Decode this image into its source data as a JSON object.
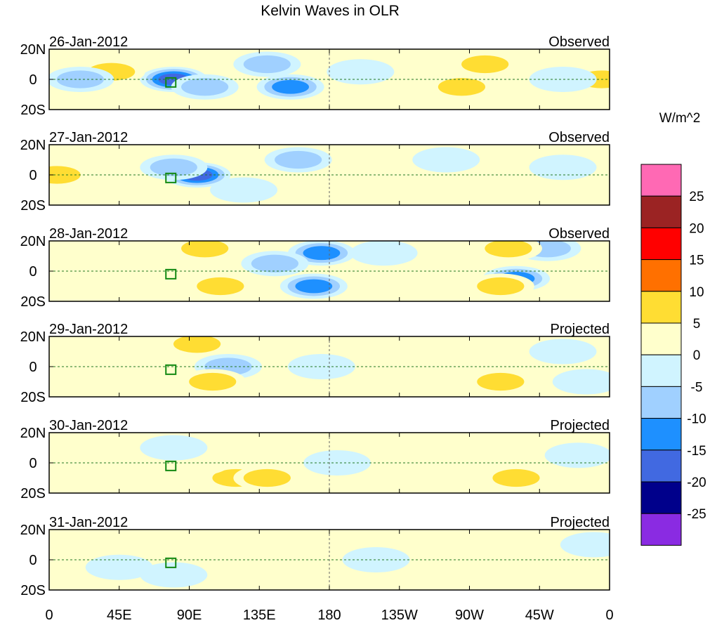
{
  "chart_data": {
    "type": "heatmap",
    "title": "Kelvin Waves in OLR",
    "units_label": "W/m^2",
    "x_ticks": [
      "0",
      "45E",
      "90E",
      "135E",
      "180",
      "135W",
      "90W",
      "45W",
      "0"
    ],
    "x_tick_lons": [
      0,
      45,
      90,
      135,
      180,
      225,
      270,
      315,
      360
    ],
    "y_ticks": [
      "20N",
      "0",
      "20S"
    ],
    "y_tick_lats": [
      20,
      0,
      -20
    ],
    "xlim": [
      0,
      360
    ],
    "ylim": [
      -20,
      20
    ],
    "colorbar": {
      "levels": [
        "25",
        "20",
        "15",
        "10",
        "5",
        "0",
        "-5",
        "-10",
        "-15",
        "-20",
        "-25"
      ],
      "colors": [
        "#ff69b4",
        "#9b2323",
        "#ff0000",
        "#ff7000",
        "#ffdd33",
        "#ffffcc",
        "#d0f4ff",
        "#a0d0ff",
        "#1e90ff",
        "#4169e1",
        "#00008b",
        "#8a2be2"
      ]
    },
    "panels": [
      {
        "date": "26-Jan-2012",
        "kind": "Observed",
        "anomalies": [
          [
            80,
            0,
            -20
          ],
          [
            100,
            -5,
            -10
          ],
          [
            155,
            -5,
            -15
          ],
          [
            140,
            10,
            -10
          ],
          [
            40,
            5,
            10
          ],
          [
            280,
            10,
            10
          ],
          [
            265,
            -5,
            10
          ],
          [
            355,
            0,
            10
          ],
          [
            20,
            0,
            -10
          ],
          [
            200,
            5,
            -5
          ],
          [
            330,
            0,
            -5
          ]
        ]
      },
      {
        "date": "27-Jan-2012",
        "kind": "Observed",
        "anomalies": [
          [
            95,
            0,
            -20
          ],
          [
            80,
            5,
            -10
          ],
          [
            125,
            -10,
            -5
          ],
          [
            160,
            10,
            -10
          ],
          [
            5,
            0,
            10
          ],
          [
            40,
            15,
            5
          ],
          [
            290,
            -10,
            5
          ],
          [
            210,
            -5,
            5
          ],
          [
            330,
            5,
            -5
          ],
          [
            255,
            10,
            -5
          ]
        ]
      },
      {
        "date": "28-Jan-2012",
        "kind": "Observed",
        "anomalies": [
          [
            175,
            12,
            -15
          ],
          [
            145,
            5,
            -10
          ],
          [
            170,
            -10,
            -15
          ],
          [
            300,
            -5,
            -15
          ],
          [
            320,
            15,
            -10
          ],
          [
            110,
            -10,
            10
          ],
          [
            100,
            15,
            10
          ],
          [
            295,
            15,
            10
          ],
          [
            290,
            -10,
            10
          ],
          [
            30,
            0,
            5
          ],
          [
            215,
            12,
            -5
          ]
        ]
      },
      {
        "date": "29-Jan-2012",
        "kind": "Projected",
        "anomalies": [
          [
            175,
            0,
            -5
          ],
          [
            115,
            0,
            -10
          ],
          [
            105,
            -10,
            10
          ],
          [
            95,
            15,
            10
          ],
          [
            290,
            -10,
            10
          ],
          [
            25,
            0,
            5
          ],
          [
            330,
            10,
            -5
          ],
          [
            215,
            10,
            5
          ],
          [
            345,
            -10,
            -5
          ]
        ]
      },
      {
        "date": "30-Jan-2012",
        "kind": "Projected",
        "anomalies": [
          [
            185,
            0,
            -5
          ],
          [
            120,
            -10,
            10
          ],
          [
            140,
            -10,
            10
          ],
          [
            300,
            -10,
            10
          ],
          [
            30,
            5,
            5
          ],
          [
            95,
            0,
            5
          ],
          [
            80,
            10,
            -5
          ],
          [
            230,
            5,
            5
          ],
          [
            340,
            5,
            -5
          ]
        ]
      },
      {
        "date": "31-Jan-2012",
        "kind": "Projected",
        "anomalies": [
          [
            115,
            5,
            5
          ],
          [
            210,
            0,
            -5
          ],
          [
            45,
            -5,
            -5
          ],
          [
            300,
            -5,
            5
          ],
          [
            80,
            -10,
            -5
          ],
          [
            255,
            10,
            5
          ],
          [
            170,
            10,
            5
          ],
          [
            350,
            10,
            -5
          ]
        ]
      }
    ]
  }
}
